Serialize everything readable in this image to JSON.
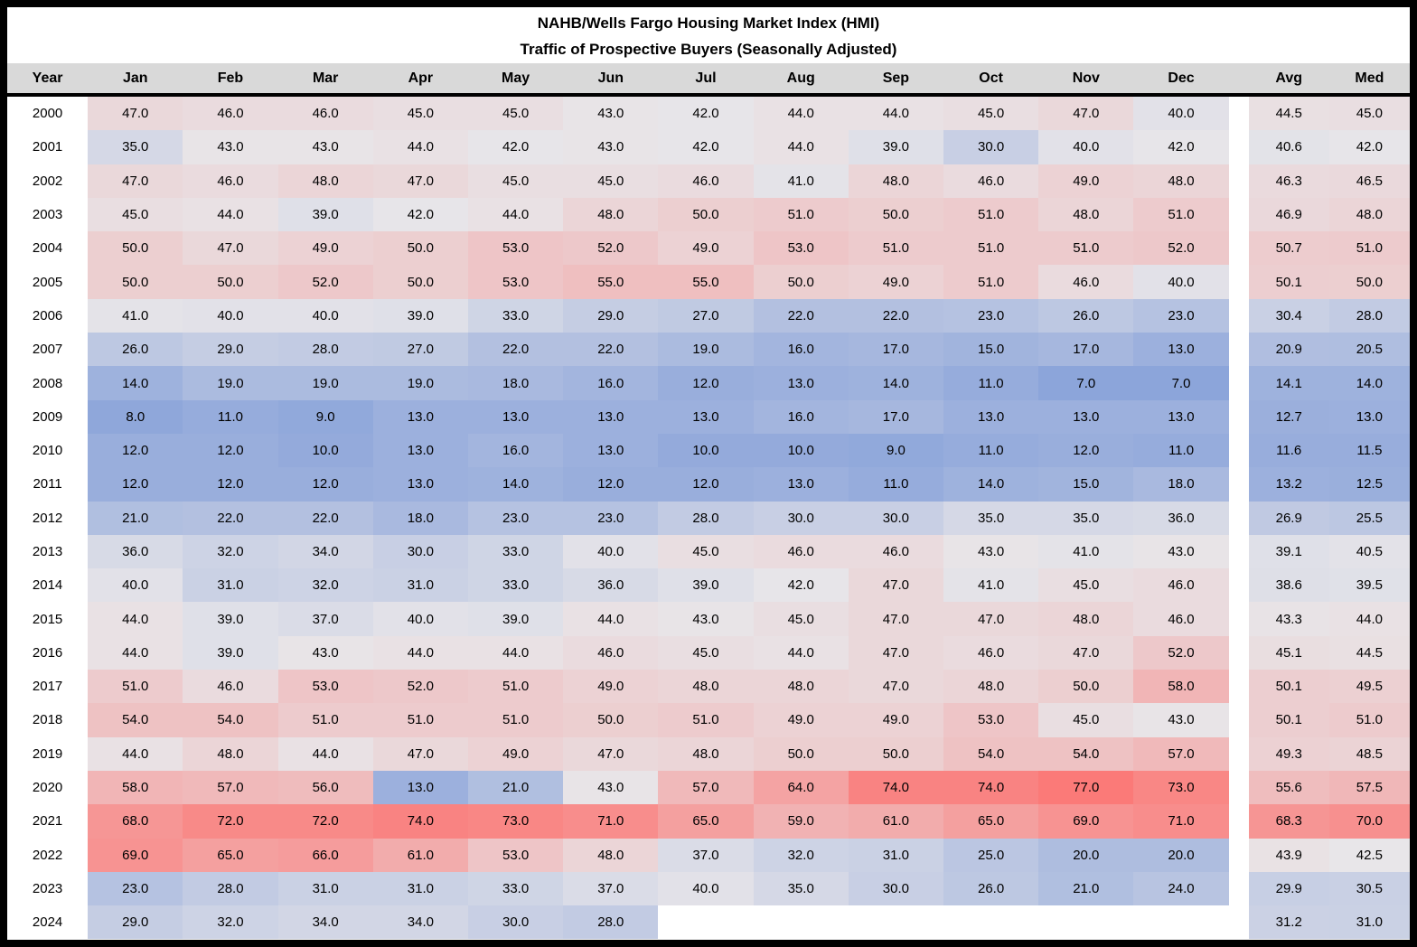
{
  "chart_data": {
    "type": "heatmap",
    "title": "NAHB/Wells Fargo Housing Market Index (HMI)",
    "subtitle": "Traffic of Prospective Buyers (Seasonally Adjusted)",
    "columns": [
      "Year",
      "Jan",
      "Feb",
      "Mar",
      "Apr",
      "May",
      "Jun",
      "Jul",
      "Aug",
      "Sep",
      "Oct",
      "Nov",
      "Dec",
      "Avg",
      "Med"
    ],
    "x_categories": [
      "Jan",
      "Feb",
      "Mar",
      "Apr",
      "May",
      "Jun",
      "Jul",
      "Aug",
      "Sep",
      "Oct",
      "Nov",
      "Dec"
    ],
    "summary_columns": [
      "Avg",
      "Med"
    ],
    "value_format": "one-decimal",
    "rows": [
      {
        "year": 2000,
        "values": [
          47,
          46,
          46,
          45,
          45,
          43,
          42,
          44,
          44,
          45,
          47,
          40
        ],
        "avg": 44.5,
        "med": 45.0
      },
      {
        "year": 2001,
        "values": [
          35,
          43,
          43,
          44,
          42,
          43,
          42,
          44,
          39,
          30,
          40,
          42
        ],
        "avg": 40.6,
        "med": 42.0
      },
      {
        "year": 2002,
        "values": [
          47,
          46,
          48,
          47,
          45,
          45,
          46,
          41,
          48,
          46,
          49,
          48
        ],
        "avg": 46.3,
        "med": 46.5
      },
      {
        "year": 2003,
        "values": [
          45,
          44,
          39,
          42,
          44,
          48,
          50,
          51,
          50,
          51,
          48,
          51
        ],
        "avg": 46.9,
        "med": 48.0
      },
      {
        "year": 2004,
        "values": [
          50,
          47,
          49,
          50,
          53,
          52,
          49,
          53,
          51,
          51,
          51,
          52
        ],
        "avg": 50.7,
        "med": 51.0
      },
      {
        "year": 2005,
        "values": [
          50,
          50,
          52,
          50,
          53,
          55,
          55,
          50,
          49,
          51,
          46,
          40
        ],
        "avg": 50.1,
        "med": 50.0
      },
      {
        "year": 2006,
        "values": [
          41,
          40,
          40,
          39,
          33,
          29,
          27,
          22,
          22,
          23,
          26,
          23
        ],
        "avg": 30.4,
        "med": 28.0
      },
      {
        "year": 2007,
        "values": [
          26,
          29,
          28,
          27,
          22,
          22,
          19,
          16,
          17,
          15,
          17,
          13
        ],
        "avg": 20.9,
        "med": 20.5
      },
      {
        "year": 2008,
        "values": [
          14,
          19,
          19,
          19,
          18,
          16,
          12,
          13,
          14,
          11,
          7,
          7
        ],
        "avg": 14.1,
        "med": 14.0
      },
      {
        "year": 2009,
        "values": [
          8,
          11,
          9,
          13,
          13,
          13,
          13,
          16,
          17,
          13,
          13,
          13
        ],
        "avg": 12.7,
        "med": 13.0
      },
      {
        "year": 2010,
        "values": [
          12,
          12,
          10,
          13,
          16,
          13,
          10,
          10,
          9,
          11,
          12,
          11
        ],
        "avg": 11.6,
        "med": 11.5
      },
      {
        "year": 2011,
        "values": [
          12,
          12,
          12,
          13,
          14,
          12,
          12,
          13,
          11,
          14,
          15,
          18
        ],
        "avg": 13.2,
        "med": 12.5
      },
      {
        "year": 2012,
        "values": [
          21,
          22,
          22,
          18,
          23,
          23,
          28,
          30,
          30,
          35,
          35,
          36
        ],
        "avg": 26.9,
        "med": 25.5
      },
      {
        "year": 2013,
        "values": [
          36,
          32,
          34,
          30,
          33,
          40,
          45,
          46,
          46,
          43,
          41,
          43
        ],
        "avg": 39.1,
        "med": 40.5
      },
      {
        "year": 2014,
        "values": [
          40,
          31,
          32,
          31,
          33,
          36,
          39,
          42,
          47,
          41,
          45,
          46
        ],
        "avg": 38.6,
        "med": 39.5
      },
      {
        "year": 2015,
        "values": [
          44,
          39,
          37,
          40,
          39,
          44,
          43,
          45,
          47,
          47,
          48,
          46
        ],
        "avg": 43.3,
        "med": 44.0
      },
      {
        "year": 2016,
        "values": [
          44,
          39,
          43,
          44,
          44,
          46,
          45,
          44,
          47,
          46,
          47,
          52
        ],
        "avg": 45.1,
        "med": 44.5
      },
      {
        "year": 2017,
        "values": [
          51,
          46,
          53,
          52,
          51,
          49,
          48,
          48,
          47,
          48,
          50,
          58
        ],
        "avg": 50.1,
        "med": 49.5
      },
      {
        "year": 2018,
        "values": [
          54,
          54,
          51,
          51,
          51,
          50,
          51,
          49,
          49,
          53,
          45,
          43
        ],
        "avg": 50.1,
        "med": 51.0
      },
      {
        "year": 2019,
        "values": [
          44,
          48,
          44,
          47,
          49,
          47,
          48,
          50,
          50,
          54,
          54,
          57
        ],
        "avg": 49.3,
        "med": 48.5
      },
      {
        "year": 2020,
        "values": [
          58,
          57,
          56,
          13,
          21,
          43,
          57,
          64,
          74,
          74,
          77,
          73
        ],
        "avg": 55.6,
        "med": 57.5
      },
      {
        "year": 2021,
        "values": [
          68,
          72,
          72,
          74,
          73,
          71,
          65,
          59,
          61,
          65,
          69,
          71
        ],
        "avg": 68.3,
        "med": 70.0
      },
      {
        "year": 2022,
        "values": [
          69,
          65,
          66,
          61,
          53,
          48,
          37,
          32,
          31,
          25,
          20,
          20
        ],
        "avg": 43.9,
        "med": 42.5
      },
      {
        "year": 2023,
        "values": [
          23,
          28,
          31,
          31,
          33,
          37,
          40,
          35,
          30,
          26,
          21,
          24
        ],
        "avg": 29.9,
        "med": 30.5
      },
      {
        "year": 2024,
        "values": [
          29,
          32,
          34,
          34,
          30,
          28,
          null,
          null,
          null,
          null,
          null,
          null
        ],
        "avg": 31.2,
        "med": 31.0
      }
    ],
    "color_scale": {
      "min_value": 7,
      "mid_value": 42.5,
      "max_value": 77,
      "min_color": "#8CA5DA",
      "mid_color": "#E8E6E9",
      "max_color": "#FB7A78",
      "empty_color": "#FFFFFF",
      "header_bg": "#D9D9D9"
    },
    "layout": {
      "legend": "none",
      "grid": "off",
      "year_col_width": 89,
      "month_col_width": 105,
      "gap_col_width": 22,
      "summary_col_width": 89
    }
  }
}
